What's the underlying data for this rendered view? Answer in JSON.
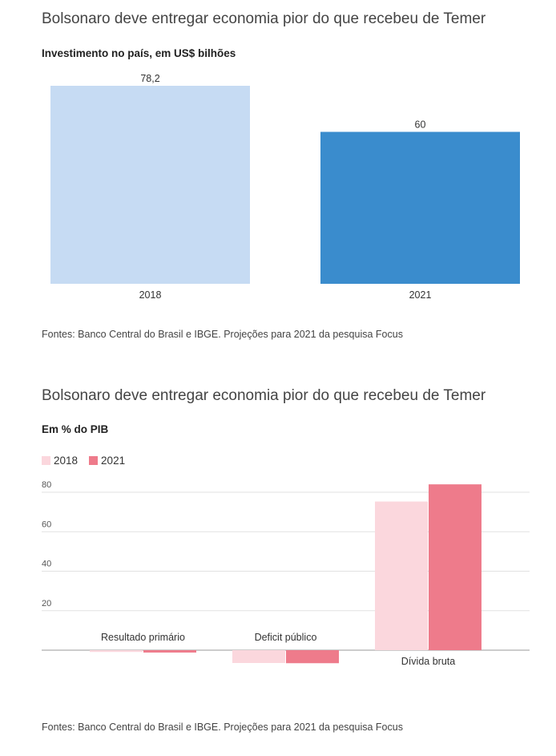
{
  "charts": [
    {
      "title": "Bolsonaro deve entregar economia pior do que recebeu de Temer",
      "subtitle": "Investimento no país, em US$ bilhões",
      "source": "Fontes: Banco Central do Brasil e IBGE. Projeções para 2021 da pesquisa Focus"
    },
    {
      "title": "Bolsonaro deve entregar economia pior do que recebeu de Temer",
      "subtitle": "Em % do PIB",
      "source": "Fontes: Banco Central do Brasil e IBGE. Projeções para 2021 da pesquisa Focus",
      "legend": [
        "2018",
        "2021"
      ]
    }
  ],
  "chart_data": [
    {
      "type": "bar",
      "title": "Bolsonaro deve entregar economia pior do que recebeu de Temer",
      "subtitle": "Investimento no país, em US$ bilhões",
      "categories": [
        "2018",
        "2021"
      ],
      "values": [
        78.2,
        60
      ],
      "value_labels": [
        "78,2",
        "60"
      ],
      "colors": [
        "#c6dbf3",
        "#3a8ccd"
      ],
      "ylim": [
        0,
        78.2
      ],
      "grid": false
    },
    {
      "type": "bar",
      "title": "Bolsonaro deve entregar economia pior do que recebeu de Temer",
      "subtitle": "Em % do PIB",
      "categories": [
        "Resultado primário",
        "Deficit público",
        "Dívida bruta"
      ],
      "series": [
        {
          "name": "2018",
          "values": [
            -0.9,
            -6.5,
            75.3
          ],
          "color": "#fbd7dd"
        },
        {
          "name": "2021",
          "values": [
            -1.2,
            -6.6,
            84.0
          ],
          "color": "#ee7b8b"
        }
      ],
      "yticks": [
        20,
        40,
        60,
        80
      ],
      "ylim": [
        -7,
        84
      ],
      "grid": true,
      "legend_position": "top-left"
    }
  ]
}
